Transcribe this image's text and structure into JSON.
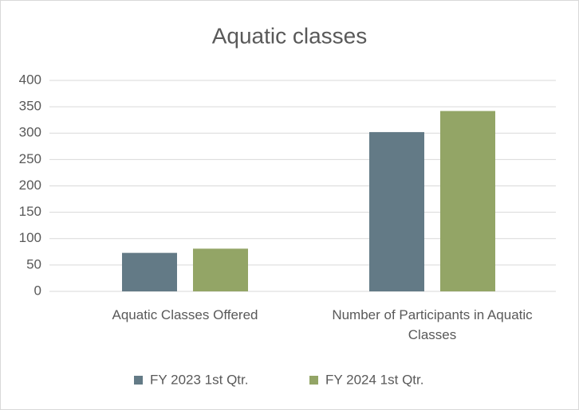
{
  "chart_data": {
    "type": "bar",
    "title": "Aquatic classes",
    "categories": [
      "Aquatic Classes Offered",
      "Number of Participants in Aquatic Classes"
    ],
    "series": [
      {
        "name": "FY 2023 1st Qtr.",
        "color": "#637a86",
        "values": [
          73,
          302
        ]
      },
      {
        "name": "FY 2024 1st Qtr.",
        "color": "#93a566",
        "values": [
          81,
          342
        ]
      }
    ],
    "ylim": [
      0,
      400
    ],
    "yticks": [
      0,
      50,
      100,
      150,
      200,
      250,
      300,
      350,
      400
    ],
    "grid": true,
    "legend": "bottom"
  }
}
